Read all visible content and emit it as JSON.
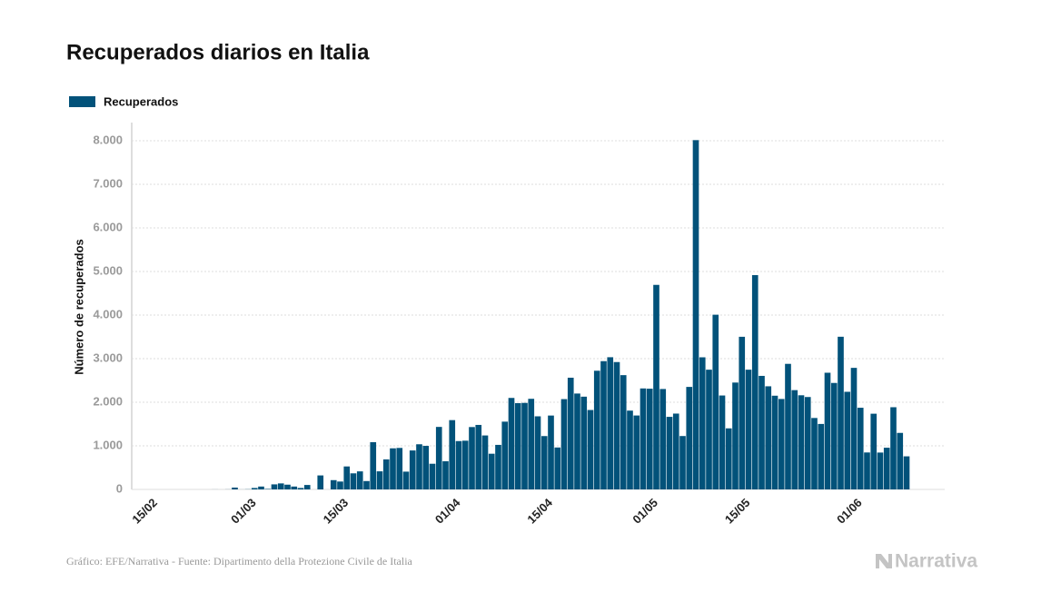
{
  "chart_data": {
    "type": "bar",
    "title": "Recuperados diarios en Italia",
    "y_label": "Número de recuperados",
    "categories": [
      "15/02",
      null,
      null,
      null,
      null,
      null,
      null,
      null,
      null,
      null,
      null,
      null,
      null,
      null,
      null,
      "01/03",
      null,
      null,
      null,
      null,
      null,
      null,
      null,
      null,
      null,
      null,
      null,
      null,
      null,
      "15/03",
      null,
      null,
      null,
      null,
      null,
      null,
      null,
      null,
      null,
      null,
      null,
      null,
      null,
      null,
      null,
      null,
      "01/04",
      null,
      null,
      null,
      null,
      null,
      null,
      null,
      null,
      null,
      null,
      null,
      null,
      null,
      "15/04",
      null,
      null,
      null,
      null,
      null,
      null,
      null,
      null,
      null,
      null,
      null,
      null,
      null,
      null,
      null,
      "01/05",
      null,
      null,
      null,
      null,
      null,
      null,
      null,
      null,
      null,
      null,
      null,
      null,
      null,
      "15/05",
      null,
      null,
      null,
      null,
      null,
      null,
      null,
      null,
      null,
      null,
      null,
      null,
      null,
      null,
      null,
      null,
      "01/06",
      null,
      null,
      null,
      null,
      null,
      null,
      null
    ],
    "series": [
      {
        "name": "Recuperados",
        "color": "#02527a",
        "values": [
          0,
          0,
          0,
          0,
          0,
          0,
          0,
          0,
          0,
          1,
          0,
          2,
          42,
          1,
          4,
          33,
          66,
          11,
          116,
          138,
          109,
          66,
          33,
          102,
          0,
          321,
          0,
          213,
          181,
          527,
          369,
          414,
          192,
          1084,
          415,
          689,
          943,
          952,
          408,
          894,
          1036,
          999,
          589,
          1434,
          646,
          1590,
          1109,
          1118,
          1431,
          1480,
          1238,
          819,
          1022,
          1555,
          2099,
          1979,
          1985,
          2079,
          1677,
          1224,
          1695,
          962,
          2072,
          2563,
          2200,
          2128,
          1822,
          2723,
          2943,
          3033,
          2922,
          2622,
          1808,
          1696,
          2317,
          2311,
          4693,
          2304,
          1665,
          1740,
          1225,
          2352,
          8014,
          3031,
          2747,
          4008,
          2155,
          1401,
          2452,
          3502,
          2747,
          4917,
          2605,
          2366,
          2150,
          2075,
          2881,
          2278,
          2160,
          2120,
          1639,
          1502,
          2677,
          2443,
          3503,
          2240,
          2789,
          1874,
          848,
          1737,
          846,
          957,
          1886,
          1297,
          759
        ]
      }
    ],
    "ylim": [
      0,
      8400
    ],
    "yticks": [
      0,
      {
        "value": 1000,
        "label": "1.000"
      },
      {
        "value": 2000,
        "label": "2.000"
      },
      {
        "value": 3000,
        "label": "3.000"
      },
      {
        "value": 4000,
        "label": "4.000"
      },
      {
        "value": 5000,
        "label": "5.000"
      },
      {
        "value": 6000,
        "label": "6.000"
      },
      {
        "value": 7000,
        "label": "7.000"
      },
      {
        "value": 8000,
        "label": "8.000"
      }
    ],
    "grid": true
  },
  "footer": {
    "source": "Gráfico: EFE/Narrativa - Fuente: Dipartimento della Protezione Civile de Italia",
    "brand": "Narrativa"
  }
}
